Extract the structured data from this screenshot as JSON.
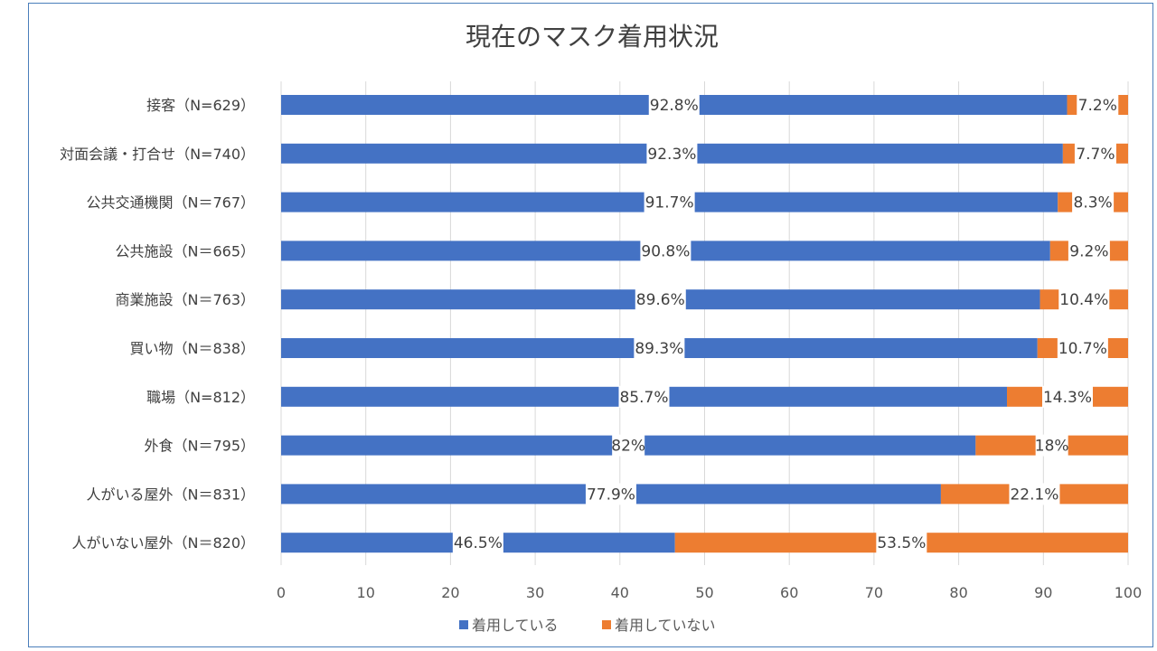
{
  "chart_data": {
    "type": "bar",
    "orientation": "horizontal",
    "stacked": true,
    "title": "現在のマスク着用状況",
    "categories": [
      "接客（N=629）",
      "対面会議・打合せ（N=740）",
      "公共交通機関（N＝767）",
      "公共施設（N＝665）",
      "商業施設（N＝763）",
      "買い物（N＝838）",
      "職場（N=812）",
      "外食（N＝795）",
      "人がいる屋外（N＝831）",
      "人がいない屋外（N＝820）"
    ],
    "series": [
      {
        "name": "着用している",
        "color": "#4472c4",
        "values": [
          92.8,
          92.3,
          91.7,
          90.8,
          89.6,
          89.3,
          85.7,
          82,
          77.9,
          46.5
        ],
        "labels": [
          "92.8%",
          "92.3%",
          "91.7%",
          "90.8%",
          "89.6%",
          "89.3%",
          "85.7%",
          "82%",
          "77.9%",
          "46.5%"
        ]
      },
      {
        "name": "着用していない",
        "color": "#ed7d31",
        "values": [
          7.2,
          7.7,
          8.3,
          9.2,
          10.4,
          10.7,
          14.3,
          18,
          22.1,
          53.5
        ],
        "labels": [
          "7.2%",
          "7.7%",
          "8.3%",
          "9.2%",
          "10.4%",
          "10.7%",
          "14.3%",
          "18%",
          "22.1%",
          "53.5%"
        ]
      }
    ],
    "xlim": [
      0,
      100
    ],
    "xticks": [
      "0",
      "10",
      "20",
      "30",
      "40",
      "50",
      "60",
      "70",
      "80",
      "90",
      "100"
    ],
    "grid": "vertical",
    "legend": "bottom",
    "frame_color": "#4a7ebb"
  }
}
